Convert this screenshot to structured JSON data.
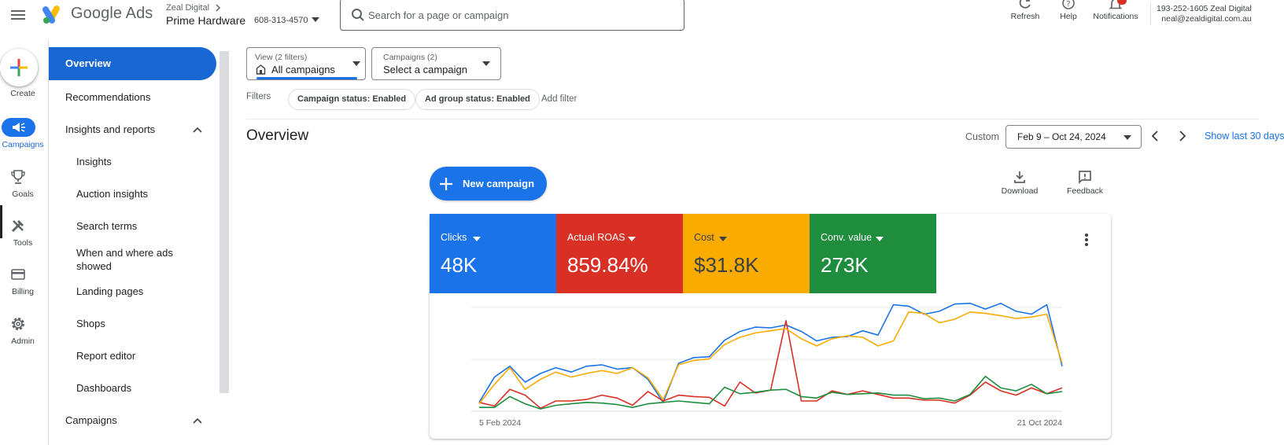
{
  "header": {
    "brand": "Google Ads",
    "parent_account": "Zeal Digital",
    "account_name": "Prime Hardware",
    "account_id": "608-313-4570",
    "search_placeholder": "Search for a page or campaign",
    "tools": [
      {
        "label": "Refresh",
        "icon": "refresh-icon"
      },
      {
        "label": "Help",
        "icon": "help-icon"
      },
      {
        "label": "Notifications",
        "icon": "bell-icon"
      }
    ],
    "account_line1": "193-252-1605 Zeal Digital",
    "account_line2": "neal@zealdigital.com.au"
  },
  "rail": {
    "items": [
      {
        "label": "Create",
        "icon": "plus-icon"
      },
      {
        "label": "Campaigns",
        "icon": "megaphone-icon"
      },
      {
        "label": "Goals",
        "icon": "trophy-icon"
      },
      {
        "label": "Tools",
        "icon": "tools-icon"
      },
      {
        "label": "Billing",
        "icon": "card-icon"
      },
      {
        "label": "Admin",
        "icon": "gear-icon"
      }
    ]
  },
  "sidebar": {
    "overview": "Overview",
    "recommendations": "Recommendations",
    "insights_reports": "Insights and reports",
    "children": [
      "Insights",
      "Auction insights",
      "Search terms",
      "When and where ads showed",
      "Landing pages",
      "Shops",
      "Report editor",
      "Dashboards"
    ],
    "campaigns": "Campaigns"
  },
  "filters": {
    "view_small": "View (2 filters)",
    "view_main": "All campaigns",
    "campaigns_small": "Campaigns (2)",
    "campaigns_main": "Select a campaign",
    "label": "Filters",
    "chips": [
      "Campaign status: Enabled",
      "Ad group status: Enabled"
    ],
    "add": "Add filter"
  },
  "overview": {
    "title": "Overview",
    "date_label": "Custom",
    "date_range": "Feb 9 – Oct 24, 2024",
    "show_last": "Show last 30 days",
    "new_campaign": "New campaign",
    "download": "Download",
    "feedback": "Feedback"
  },
  "metrics": [
    {
      "name": "Clicks",
      "value": "48K",
      "color": "#1a73e8"
    },
    {
      "name": "Actual ROAS",
      "value": "859.84%",
      "color": "#d93025"
    },
    {
      "name": "Cost",
      "value": "$31.8K",
      "color": "#f9ab00"
    },
    {
      "name": "Conv. value",
      "value": "273K",
      "color": "#1e8e3e"
    }
  ],
  "chart_data": {
    "type": "line",
    "x_start_label": "5 Feb 2024",
    "x_end_label": "21 Oct 2024",
    "grid": "horizontal",
    "series": [
      {
        "name": "Clicks",
        "color": "#1a73e8",
        "values": [
          10,
          45,
          60,
          38,
          50,
          58,
          52,
          60,
          62,
          56,
          58,
          42,
          10,
          64,
          72,
          73,
          96,
          108,
          114,
          113,
          117,
          108,
          95,
          100,
          101,
          109,
          103,
          145,
          143,
          132,
          136,
          146,
          147,
          139,
          147,
          136,
          132,
          145,
          60
        ]
      },
      {
        "name": "Actual ROAS",
        "color": "#d93025",
        "values": [
          10,
          5,
          28,
          20,
          2,
          12,
          12,
          14,
          20,
          16,
          6,
          25,
          12,
          20,
          18,
          17,
          5,
          38,
          23,
          27,
          123,
          12,
          12,
          26,
          21,
          26,
          21,
          16,
          16,
          13,
          13,
          9,
          20,
          38,
          26,
          20,
          30,
          22,
          30
        ]
      },
      {
        "name": "Cost",
        "color": "#f9ab00",
        "values": [
          8,
          35,
          58,
          28,
          42,
          52,
          45,
          50,
          54,
          50,
          58,
          44,
          14,
          62,
          68,
          70,
          90,
          100,
          106,
          109,
          112,
          98,
          88,
          98,
          102,
          100,
          88,
          95,
          135,
          133,
          120,
          125,
          135,
          133,
          130,
          126,
          128,
          132,
          64
        ]
      },
      {
        "name": "Conv. value",
        "color": "#1e8e3e",
        "values": [
          3,
          3,
          18,
          8,
          1,
          6,
          8,
          10,
          9,
          7,
          3,
          8,
          10,
          12,
          10,
          8,
          31,
          22,
          24,
          27,
          28,
          18,
          16,
          24,
          21,
          22,
          23,
          20,
          20,
          15,
          16,
          12,
          21,
          46,
          30,
          26,
          35,
          22,
          25
        ]
      }
    ]
  }
}
